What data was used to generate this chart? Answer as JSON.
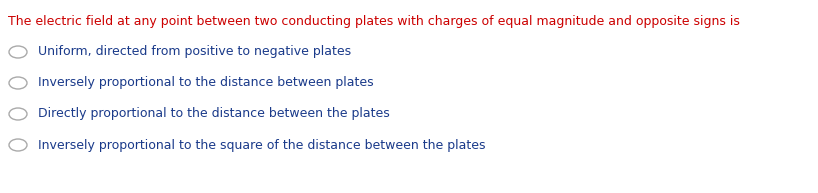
{
  "question": "The electric field at any point between two conducting plates with charges of equal magnitude and opposite signs is",
  "question_color": "#cc0000",
  "options": [
    "Uniform, directed from positive to negative plates",
    "Inversely proportional to the distance between plates",
    "Directly proportional to the distance between the plates",
    "Inversely proportional to the square of the distance between the plates"
  ],
  "option_color": "#1a3a8a",
  "circle_color": "#aaaaaa",
  "background_color": "#ffffff",
  "question_fontsize": 9.0,
  "option_fontsize": 9.0,
  "fig_width": 8.18,
  "fig_height": 1.93,
  "dpi": 100
}
